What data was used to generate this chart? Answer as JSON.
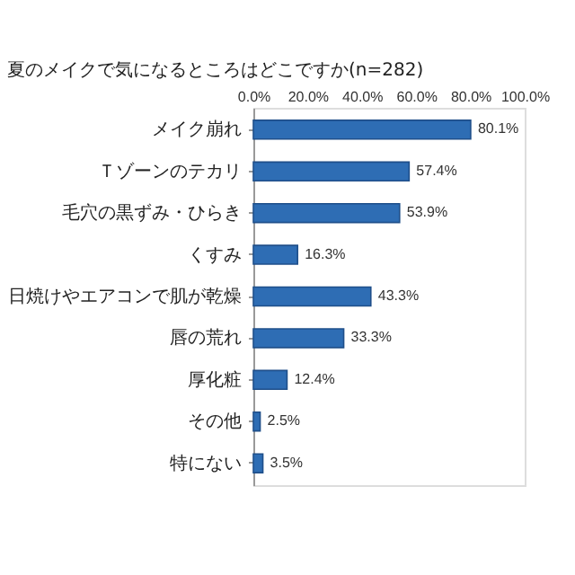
{
  "chart_data": {
    "type": "bar",
    "orientation": "horizontal",
    "title": "夏のメイクで気になるところはどこですか(n=282)",
    "categories": [
      "メイク崩れ",
      "Ｔゾーンのテカリ",
      "毛穴の黒ずみ・ひらき",
      "くすみ",
      "日焼けやエアコンで肌が乾燥",
      "唇の荒れ",
      "厚化粧",
      "その他",
      "特にない"
    ],
    "values": [
      80.1,
      57.4,
      53.9,
      16.3,
      43.3,
      33.3,
      12.4,
      2.5,
      3.5
    ],
    "value_labels": [
      "80.1%",
      "57.4%",
      "53.9%",
      "16.3%",
      "43.3%",
      "33.3%",
      "12.4%",
      "2.5%",
      "3.5%"
    ],
    "color": "#2e6db4",
    "xlim": [
      0,
      100
    ],
    "xticks": [
      {
        "value": 0,
        "label": "0.0%"
      },
      {
        "value": 20,
        "label": "20.0%"
      },
      {
        "value": 40,
        "label": "40.0%"
      },
      {
        "value": 60,
        "label": "60.0%"
      },
      {
        "value": 80,
        "label": "80.0%"
      },
      {
        "value": 100,
        "label": "100.0%"
      }
    ],
    "grid": false
  }
}
